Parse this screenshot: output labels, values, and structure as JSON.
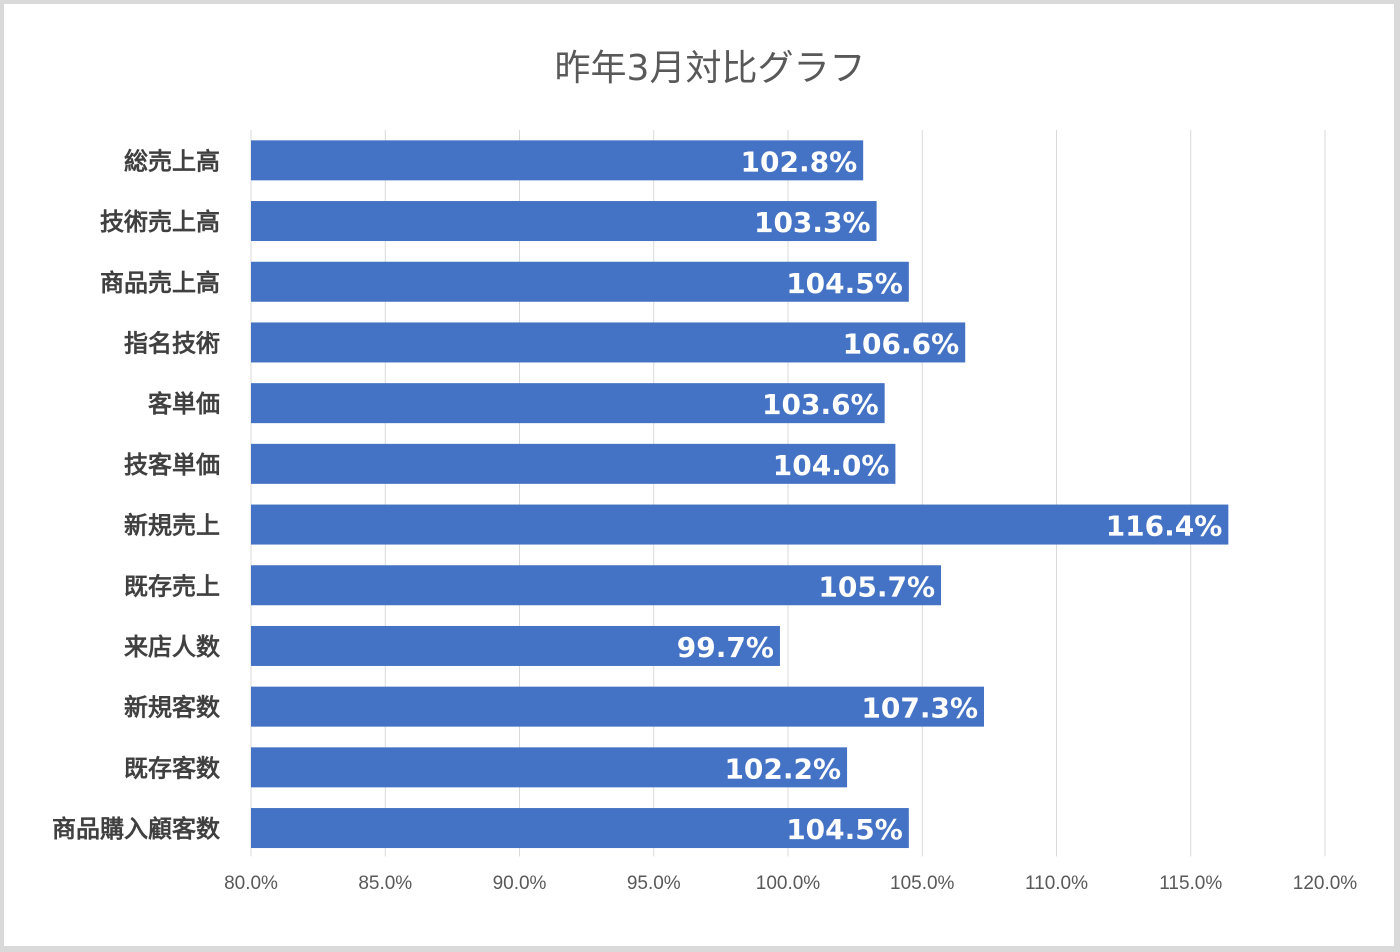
{
  "chart_data": {
    "type": "bar",
    "orientation": "horizontal",
    "title": "昨年3月対比グラフ",
    "categories": [
      "総売上高",
      "技術売上高",
      "商品売上高",
      "指名技術",
      "客単価",
      "技客単価",
      "新規売上",
      "既存売上",
      "来店人数",
      "新規客数",
      "既存客数",
      "商品購入顧客数"
    ],
    "values": [
      102.8,
      103.3,
      104.5,
      106.6,
      103.6,
      104.0,
      116.4,
      105.7,
      99.7,
      107.3,
      102.2,
      104.5
    ],
    "value_labels": [
      "102.8%",
      "103.3%",
      "104.5%",
      "106.6%",
      "103.6%",
      "104.0%",
      "116.4%",
      "105.7%",
      "99.7%",
      "107.3%",
      "102.2%",
      "104.5%"
    ],
    "xlim": [
      80,
      120
    ],
    "x_ticks": [
      80,
      85,
      90,
      95,
      100,
      105,
      110,
      115,
      120
    ],
    "x_tick_labels": [
      "80.0%",
      "85.0%",
      "90.0%",
      "95.0%",
      "100.0%",
      "105.0%",
      "110.0%",
      "115.0%",
      "120.0%"
    ],
    "xlabel": "",
    "ylabel": "",
    "grid": true,
    "legend": false,
    "bar_color": "#4472c4"
  }
}
